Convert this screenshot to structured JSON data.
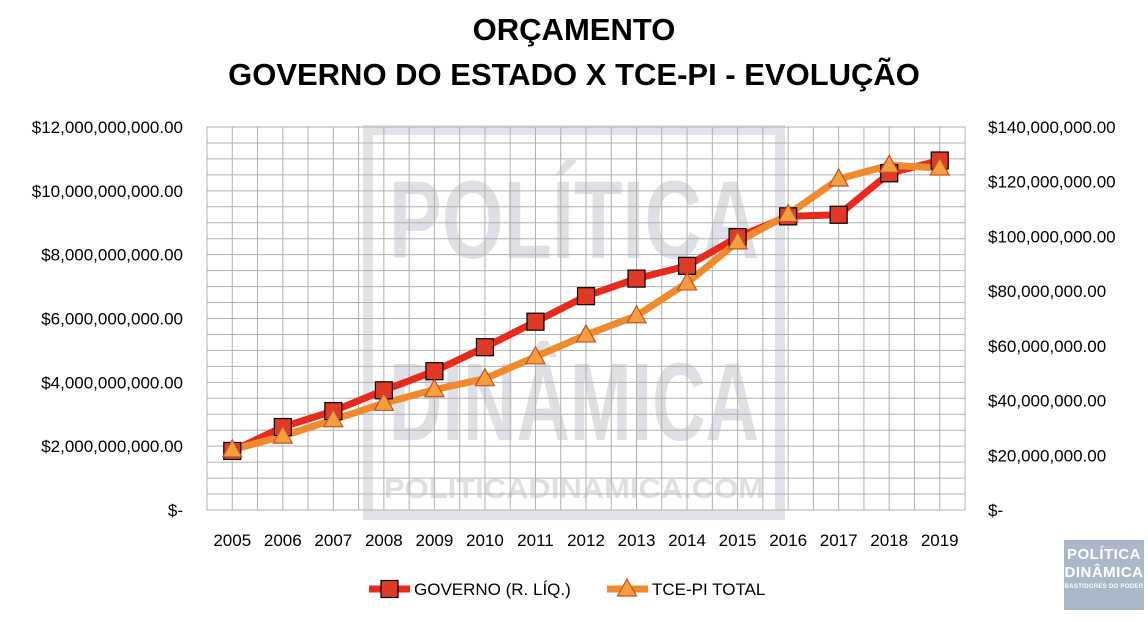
{
  "title_line1": "ORÇAMENTO",
  "title_line2": "GOVERNO DO ESTADO X TCE-PI - EVOLUÇÃO",
  "watermark": {
    "line1": "POLÍTICA",
    "line2": "DINÂMICA",
    "url": "POLITICADINAMICA.COM"
  },
  "logo": {
    "line1": "POLÍTICA",
    "line2": "DINÂMICA",
    "tagline": "BASTIDORES DO PODER"
  },
  "colors": {
    "governo_line": "#e8291c",
    "governo_marker": "#e03a26",
    "tce_line": "#f08a2c",
    "tce_marker": "#f3a03c",
    "grid": "#b0b0b0",
    "logo_bg": "#a9b9c9"
  },
  "chart_data": {
    "type": "line",
    "title": "ORÇAMENTO GOVERNO DO ESTADO X TCE-PI - EVOLUÇÃO",
    "categories": [
      "2005",
      "2006",
      "2007",
      "2008",
      "2009",
      "2010",
      "2011",
      "2012",
      "2013",
      "2014",
      "2015",
      "2016",
      "2017",
      "2018",
      "2019"
    ],
    "grid": true,
    "legend_position": "bottom",
    "y_left": {
      "ylim": [
        0,
        12000000000
      ],
      "ticks": [
        0,
        2000000000,
        4000000000,
        6000000000,
        8000000000,
        10000000000,
        12000000000
      ],
      "tick_labels": [
        "$-",
        "$2,000,000,000.00",
        "$4,000,000,000.00",
        "$6,000,000,000.00",
        "$8,000,000,000.00",
        "$10,000,000,000.00",
        "$12,000,000,000.00"
      ]
    },
    "y_right": {
      "ylim": [
        0,
        140000000
      ],
      "ticks": [
        0,
        20000000,
        40000000,
        60000000,
        80000000,
        100000000,
        120000000,
        140000000
      ],
      "tick_labels": [
        "$-",
        "$20,000,000.00",
        "$40,000,000.00",
        "$60,000,000.00",
        "$80,000,000.00",
        "$100,000,000.00",
        "$120,000,000.00",
        "$140,000,000.00"
      ]
    },
    "series": [
      {
        "name": "GOVERNO (R. LÍQ.)",
        "axis": "left",
        "marker": "square",
        "values": [
          1850000000,
          2600000000,
          3100000000,
          3750000000,
          4350000000,
          5100000000,
          5900000000,
          6700000000,
          7250000000,
          7650000000,
          8550000000,
          9200000000,
          9250000000,
          10550000000,
          10950000000
        ]
      },
      {
        "name": "TCE-PI TOTAL",
        "axis": "right",
        "marker": "triangle",
        "values": [
          22000000,
          27000000,
          33000000,
          39000000,
          44000000,
          48000000,
          56000000,
          64000000,
          71000000,
          83000000,
          98000000,
          108000000,
          121000000,
          126000000,
          125000000
        ]
      }
    ]
  }
}
